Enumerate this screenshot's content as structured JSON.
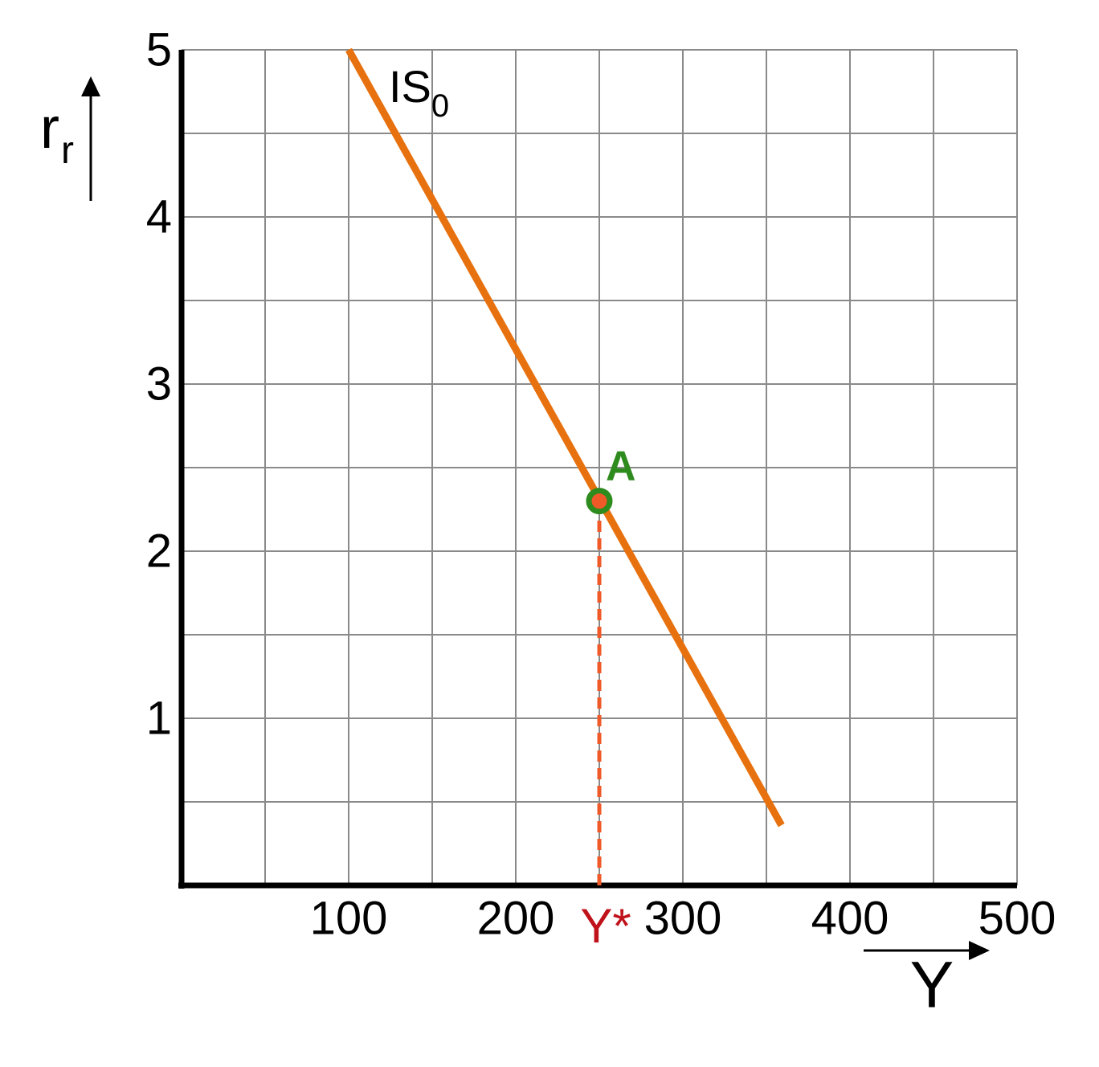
{
  "chart_data": {
    "type": "line",
    "x_label": "Y",
    "y_label": {
      "main": "r",
      "sub": "r"
    },
    "series": [
      {
        "name": {
          "main": "IS",
          "sub": "0"
        },
        "color": "#e8710f",
        "x": [
          100,
          359
        ],
        "values": [
          5,
          0.36
        ]
      }
    ],
    "points": [
      {
        "label": "A",
        "x": 250,
        "y": 2.3,
        "color": "#2e8b1e",
        "fill": "#f05a28"
      }
    ],
    "annotations": [
      {
        "text": "Y*",
        "x": 250,
        "color": "#c0121a"
      }
    ],
    "xlim": [
      0,
      500
    ],
    "ylim": [
      0,
      5
    ],
    "xticks": [
      100,
      200,
      300,
      400,
      500
    ],
    "yticks": [
      1,
      2,
      3,
      4,
      5
    ],
    "xgrid": [
      50,
      100,
      150,
      200,
      250,
      300,
      350,
      400,
      450,
      500
    ],
    "ygrid": [
      0.5,
      1,
      1.5,
      2,
      2.5,
      3,
      3.5,
      4,
      4.5,
      5
    ]
  }
}
